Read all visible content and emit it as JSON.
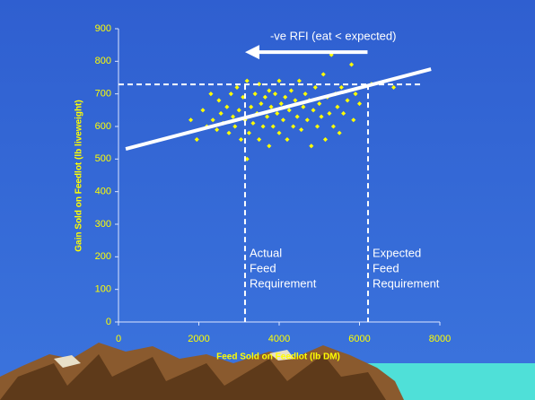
{
  "chart_data": {
    "type": "scatter",
    "xlabel": "Feed Sold on Feedlot (lb DM)",
    "ylabel": "Gain Sold on Feedlot (lb liveweight)",
    "color": "#ffff00",
    "x": [
      1800,
      1950,
      2100,
      2200,
      2300,
      2350,
      2450,
      2500,
      2550,
      2600,
      2700,
      2750,
      2800,
      2850,
      2900,
      2950,
      3000,
      3050,
      3100,
      3150,
      3200,
      3200,
      3250,
      3300,
      3350,
      3400,
      3450,
      3500,
      3500,
      3550,
      3600,
      3650,
      3700,
      3750,
      3750,
      3800,
      3850,
      3900,
      3950,
      4000,
      4000,
      4050,
      4100,
      4150,
      4200,
      4250,
      4300,
      4350,
      4400,
      4450,
      4500,
      4550,
      4600,
      4650,
      4700,
      4750,
      4800,
      4850,
      4900,
      4950,
      5000,
      5050,
      5100,
      5150,
      5200,
      5250,
      5300,
      5350,
      5400,
      5450,
      5500,
      5550,
      5600,
      5700,
      5800,
      5850,
      5900,
      6000,
      6300,
      6850
    ],
    "values": [
      620,
      560,
      650,
      600,
      700,
      620,
      590,
      680,
      640,
      610,
      660,
      580,
      700,
      630,
      600,
      720,
      650,
      560,
      690,
      620,
      500,
      740,
      580,
      660,
      610,
      700,
      640,
      560,
      730,
      670,
      600,
      690,
      630,
      540,
      710,
      660,
      600,
      700,
      640,
      580,
      740,
      670,
      620,
      690,
      560,
      650,
      710,
      600,
      680,
      630,
      740,
      590,
      660,
      700,
      620,
      680,
      540,
      650,
      720,
      600,
      670,
      630,
      760,
      560,
      690,
      640,
      820,
      600,
      700,
      660,
      580,
      720,
      640,
      680,
      790,
      620,
      700,
      670,
      730,
      720
    ],
    "trend": {
      "x": [
        180,
        7780
      ],
      "y": [
        531,
        776
      ]
    },
    "hline": {
      "y": 729,
      "x": [
        0,
        7550
      ]
    },
    "vlines": [
      {
        "x": 3150,
        "label": [
          "Actual",
          "Feed",
          "Requirement"
        ]
      },
      {
        "x": 6212,
        "label": [
          "Expected",
          "Feed",
          "Requirement"
        ]
      }
    ],
    "arrow": {
      "label": "-ve RFI (eat < expected)",
      "x": [
        6200,
        3150
      ],
      "y": 828
    },
    "xlim": [
      0,
      8000
    ],
    "xticks": [
      0,
      2000,
      4000,
      6000,
      8000
    ],
    "ylim": [
      0,
      900
    ],
    "yticks": [
      0,
      100,
      200,
      300,
      400,
      500,
      600,
      700,
      800,
      900
    ],
    "grid": false
  }
}
